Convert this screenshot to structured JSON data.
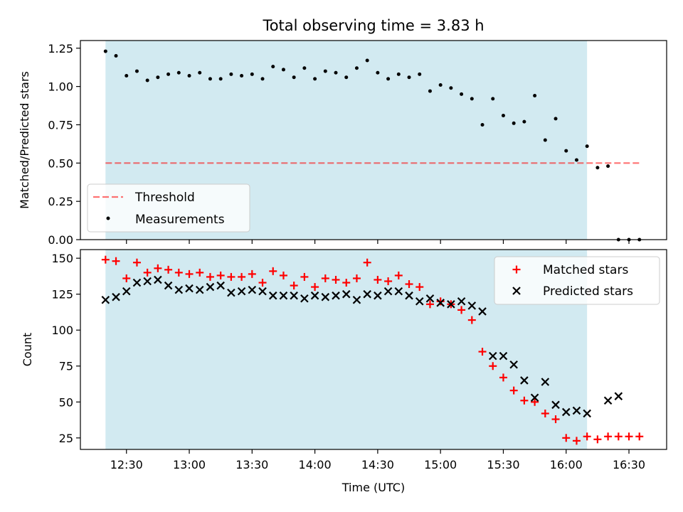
{
  "title": "Total observing time = 3.83 h",
  "colors": {
    "shade": "#add8e6",
    "threshold": "#ff0000",
    "measurement": "#000000",
    "matched": "#ff0000",
    "predicted": "#000000"
  },
  "chart_data": [
    {
      "type": "scatter",
      "ylabel": "Matched/Predicted stars",
      "ylim": [
        0,
        1.3
      ],
      "yticks": [
        0,
        0.25,
        0.5,
        0.75,
        1.0,
        1.25
      ],
      "ytick_labels": [
        "0.00",
        "0.25",
        "0.50",
        "0.75",
        "1.00",
        "1.25"
      ],
      "xticks_shown": false,
      "legend": "lower-left",
      "shaded_span": [
        "12:20",
        "16:10"
      ],
      "threshold": {
        "name": "Threshold",
        "value": 0.5,
        "x_range": [
          "12:20",
          "16:35"
        ]
      },
      "series": [
        {
          "name": "Measurements",
          "x": [
            "12:20",
            "12:25",
            "12:30",
            "12:35",
            "12:40",
            "12:45",
            "12:50",
            "12:55",
            "13:00",
            "13:05",
            "13:10",
            "13:15",
            "13:20",
            "13:25",
            "13:30",
            "13:35",
            "13:40",
            "13:45",
            "13:50",
            "13:55",
            "14:00",
            "14:05",
            "14:10",
            "14:15",
            "14:20",
            "14:25",
            "14:30",
            "14:35",
            "14:40",
            "14:45",
            "14:50",
            "14:55",
            "15:00",
            "15:05",
            "15:10",
            "15:15",
            "15:20",
            "15:25",
            "15:30",
            "15:35",
            "15:40",
            "15:45",
            "15:50",
            "15:55",
            "16:00",
            "16:05",
            "16:10",
            "16:15",
            "16:20",
            "16:25",
            "16:30",
            "16:35"
          ],
          "y": [
            1.23,
            1.2,
            1.07,
            1.1,
            1.04,
            1.06,
            1.08,
            1.09,
            1.07,
            1.09,
            1.05,
            1.05,
            1.08,
            1.07,
            1.08,
            1.05,
            1.13,
            1.11,
            1.06,
            1.12,
            1.05,
            1.1,
            1.09,
            1.06,
            1.12,
            1.17,
            1.09,
            1.05,
            1.08,
            1.06,
            1.08,
            0.97,
            1.01,
            0.99,
            0.95,
            0.92,
            0.75,
            0.92,
            0.81,
            0.76,
            0.77,
            0.94,
            0.65,
            0.79,
            0.58,
            0.52,
            0.61,
            0.47,
            0.48,
            0.0,
            0.0,
            0.0
          ]
        }
      ]
    },
    {
      "type": "scatter",
      "xlabel": "Time (UTC)",
      "ylabel": "Count",
      "ylim": [
        17,
        156
      ],
      "yticks": [
        25,
        50,
        75,
        100,
        125,
        150
      ],
      "ytick_labels": [
        "25",
        "50",
        "75",
        "100",
        "125",
        "150"
      ],
      "xticks": [
        "12:30",
        "13:00",
        "13:30",
        "14:00",
        "14:30",
        "15:00",
        "15:30",
        "16:00",
        "16:30"
      ],
      "xlim": [
        "12:08",
        "16:48"
      ],
      "legend": "top-right",
      "shaded_span": [
        "12:20",
        "16:10"
      ],
      "x": [
        "12:20",
        "12:25",
        "12:30",
        "12:35",
        "12:40",
        "12:45",
        "12:50",
        "12:55",
        "13:00",
        "13:05",
        "13:10",
        "13:15",
        "13:20",
        "13:25",
        "13:30",
        "13:35",
        "13:40",
        "13:45",
        "13:50",
        "13:55",
        "14:00",
        "14:05",
        "14:10",
        "14:15",
        "14:20",
        "14:25",
        "14:30",
        "14:35",
        "14:40",
        "14:45",
        "14:50",
        "14:55",
        "15:00",
        "15:05",
        "15:10",
        "15:15",
        "15:20",
        "15:25",
        "15:30",
        "15:35",
        "15:40",
        "15:45",
        "15:50",
        "15:55",
        "16:00",
        "16:05",
        "16:10",
        "16:15",
        "16:20",
        "16:25",
        "16:30",
        "16:35"
      ],
      "series": [
        {
          "name": "Matched stars",
          "marker": "plus",
          "values": [
            149,
            148,
            136,
            147,
            140,
            143,
            142,
            140,
            139,
            140,
            137,
            138,
            137,
            137,
            139,
            133,
            141,
            138,
            131,
            137,
            130,
            136,
            135,
            133,
            136,
            147,
            135,
            134,
            138,
            132,
            130,
            118,
            120,
            118,
            114,
            107,
            85,
            75,
            67,
            58,
            51,
            50,
            42,
            38,
            25,
            23,
            26,
            24,
            26,
            26,
            26,
            26
          ]
        },
        {
          "name": "Predicted stars",
          "marker": "x",
          "values": [
            121,
            123,
            127,
            133,
            134,
            135,
            131,
            128,
            129,
            128,
            130,
            131,
            126,
            127,
            128,
            127,
            124,
            124,
            124,
            122,
            124,
            123,
            124,
            125,
            121,
            125,
            124,
            127,
            127,
            124,
            120,
            122,
            119,
            118,
            120,
            117,
            113,
            82,
            82,
            76,
            65,
            53,
            64,
            48,
            43,
            44,
            42,
            null,
            51,
            54,
            null,
            null
          ]
        }
      ]
    }
  ]
}
